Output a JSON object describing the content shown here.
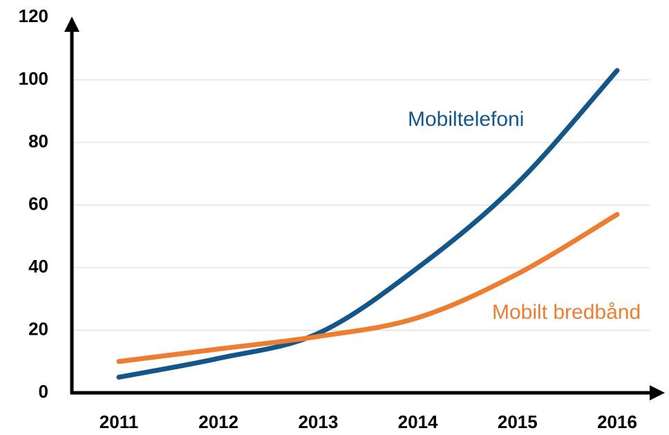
{
  "chart_data": {
    "type": "line",
    "categories": [
      "2011",
      "2012",
      "2013",
      "2014",
      "2015",
      "2016"
    ],
    "series": [
      {
        "name": "Mobiltelefoni",
        "color": "#12568a",
        "values": [
          5,
          11,
          19,
          40,
          67,
          103
        ]
      },
      {
        "name": "Mobilt bredbånd",
        "color": "#ed7d31",
        "values": [
          10,
          14,
          18,
          24,
          38,
          57
        ]
      }
    ],
    "ylim": [
      0,
      120
    ],
    "yticks": [
      0,
      20,
      40,
      60,
      80,
      100,
      120
    ],
    "grid": true
  }
}
